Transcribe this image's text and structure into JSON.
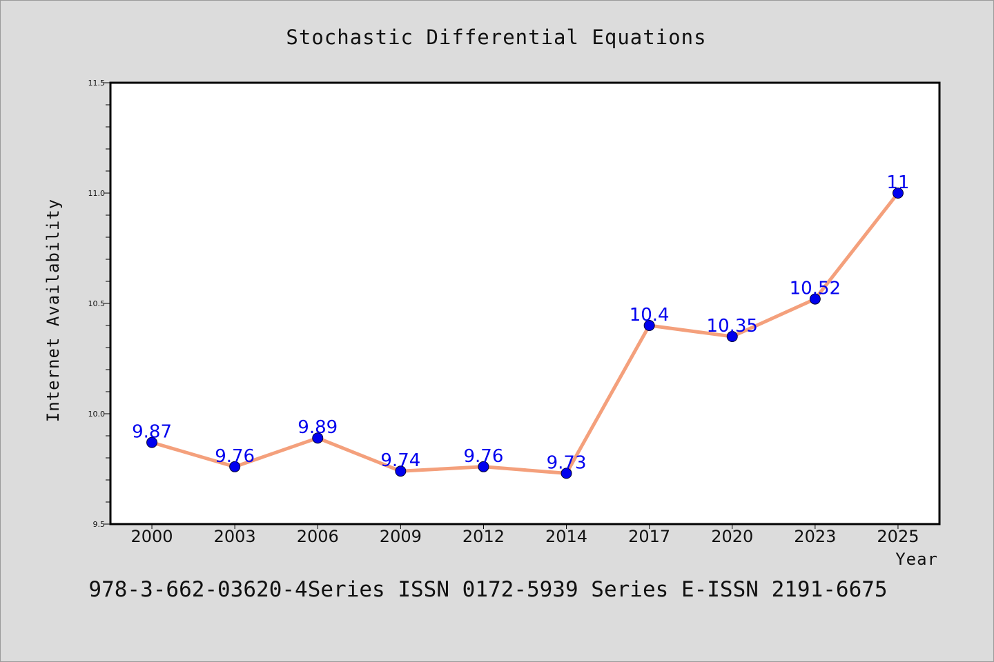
{
  "chart_data": {
    "type": "line",
    "title": "Stochastic Differential Equations",
    "xlabel": "Year",
    "ylabel": "Internet Availability",
    "categories": [
      "2000",
      "2003",
      "2006",
      "2009",
      "2012",
      "2014",
      "2017",
      "2020",
      "2023",
      "2025"
    ],
    "series": [
      {
        "values": [
          9.87,
          9.76,
          9.89,
          9.74,
          9.76,
          9.73,
          10.4,
          10.35,
          10.52,
          11
        ]
      }
    ],
    "data_labels": [
      "9.87",
      "9.76",
      "9.89",
      "9.74",
      "9.76",
      "9.73",
      "10.4",
      "10.35",
      "10.52",
      "11"
    ],
    "ylim": [
      9.5,
      11.5
    ],
    "yticks": [
      "9.5",
      "10.0",
      "10.5",
      "11.0",
      "11.5"
    ],
    "grid": false,
    "line_color": "#f4a07c",
    "marker_color": "#0000ee",
    "label_color": "#0000ee",
    "background_color": "#dcdcdc",
    "plot_background_color": "#ffffff"
  },
  "footer": {
    "text": "978-3-662-03620-4Series ISSN 0172-5939 Series E-ISSN 2191-6675"
  }
}
